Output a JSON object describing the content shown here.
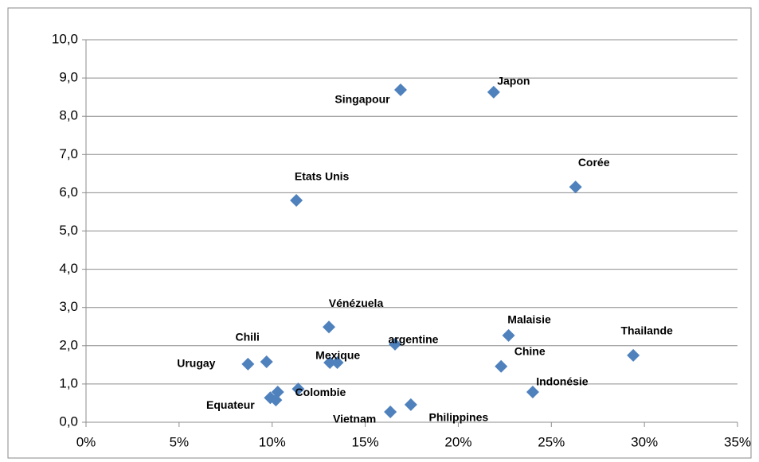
{
  "chart_data": {
    "type": "scatter",
    "color": "#4f81bd",
    "grid": true,
    "point_labels": [
      "Singapour",
      "Japon",
      "Corée",
      "Etats Unis",
      "Vénézuela",
      "argentine",
      "Malaisie",
      "Thailande",
      "Chine",
      "Indonésie",
      "Chili",
      "Urugay",
      "Mexique",
      null,
      "Colombie",
      "Equateur",
      null,
      null,
      "Vietnam",
      "Philippines"
    ],
    "x": [
      16.9,
      21.9,
      26.3,
      11.3,
      13.05,
      16.6,
      22.7,
      29.4,
      22.3,
      24.0,
      9.7,
      8.7,
      13.1,
      13.5,
      11.4,
      9.9,
      10.3,
      10.2,
      16.35,
      17.45
    ],
    "values": [
      8.69,
      8.63,
      6.15,
      5.8,
      2.49,
      2.04,
      2.27,
      1.75,
      1.46,
      0.79,
      1.58,
      1.52,
      1.56,
      1.56,
      0.87,
      0.64,
      0.79,
      0.58,
      0.27,
      0.46
    ],
    "xlim": [
      0,
      35
    ],
    "xticks": [
      {
        "value": 0,
        "label": "0%"
      },
      {
        "value": 5,
        "label": "5%"
      },
      {
        "value": 10,
        "label": "10%"
      },
      {
        "value": 15,
        "label": "15%"
      },
      {
        "value": 20,
        "label": "20%"
      },
      {
        "value": 25,
        "label": "25%"
      },
      {
        "value": 30,
        "label": "30%"
      },
      {
        "value": 35,
        "label": "35%"
      }
    ],
    "ylim": [
      0,
      10
    ],
    "yticks": [
      {
        "value": 0,
        "label": "0,0"
      },
      {
        "value": 1,
        "label": "1,0"
      },
      {
        "value": 2,
        "label": "2,0"
      },
      {
        "value": 3,
        "label": "3,0"
      },
      {
        "value": 4,
        "label": "4,0"
      },
      {
        "value": 5,
        "label": "5,0"
      },
      {
        "value": 6,
        "label": "6,0"
      },
      {
        "value": 7,
        "label": "7,0"
      },
      {
        "value": 8,
        "label": "8,0"
      },
      {
        "value": 9,
        "label": "9,0"
      },
      {
        "value": 10,
        "label": "10,0"
      }
    ]
  }
}
